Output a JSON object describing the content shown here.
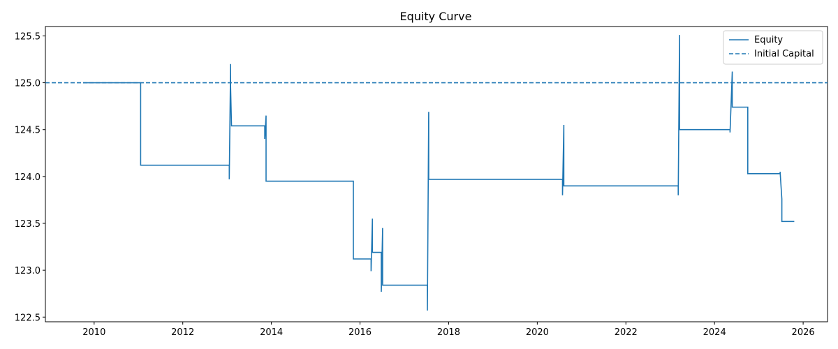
{
  "chart_data": {
    "type": "line",
    "title": "Equity Curve",
    "xlabel": "",
    "ylabel": "",
    "xlim": [
      2008.9,
      2026.55
    ],
    "ylim": [
      122.45,
      125.6
    ],
    "x_ticks": [
      2010,
      2012,
      2014,
      2016,
      2018,
      2020,
      2022,
      2024,
      2026
    ],
    "y_ticks": [
      122.5,
      123.0,
      123.5,
      124.0,
      124.5,
      125.0,
      125.5
    ],
    "y_tick_labels": [
      "122.5",
      "123.0",
      "123.5",
      "124.0",
      "124.5",
      "125.0",
      "125.5"
    ],
    "grid": false,
    "legend": {
      "position": "top-right",
      "entries": [
        "Equity",
        "Initial Capital"
      ]
    },
    "colors": {
      "equity": "#1f77b4",
      "initial_capital": "#1f77b4"
    },
    "series": [
      {
        "name": "Equity",
        "style": "solid-step",
        "x": [
          2009.75,
          2011.05,
          2011.05,
          2013.05,
          2013.05,
          2013.08,
          2013.08,
          2013.1,
          2013.1,
          2013.85,
          2013.85,
          2013.88,
          2013.88,
          2015.85,
          2015.85,
          2016.25,
          2016.25,
          2016.28,
          2016.28,
          2016.48,
          2016.48,
          2016.51,
          2016.51,
          2017.52,
          2017.52,
          2017.55,
          2017.55,
          2017.58,
          2017.58,
          2020.57,
          2020.57,
          2020.6,
          2020.6,
          2023.18,
          2023.18,
          2023.21,
          2023.21,
          2024.35,
          2024.35,
          2024.4,
          2024.4,
          2024.75,
          2024.75,
          2025.48,
          2025.48,
          2025.52,
          2025.52,
          2025.8
        ],
        "y": [
          125.0,
          125.0,
          124.12,
          124.12,
          123.97,
          125.2,
          124.96,
          124.54,
          124.54,
          124.54,
          124.4,
          124.65,
          123.95,
          123.95,
          123.12,
          123.12,
          122.99,
          123.55,
          123.19,
          123.19,
          122.77,
          123.45,
          122.84,
          122.84,
          122.57,
          124.69,
          123.97,
          123.97,
          123.97,
          123.97,
          123.8,
          124.55,
          123.9,
          123.9,
          123.8,
          125.51,
          124.5,
          124.5,
          124.47,
          125.12,
          124.74,
          124.74,
          124.03,
          124.03,
          124.05,
          123.76,
          123.52,
          123.52
        ]
      },
      {
        "name": "Initial Capital",
        "style": "dashed",
        "y": 125.0
      }
    ]
  }
}
